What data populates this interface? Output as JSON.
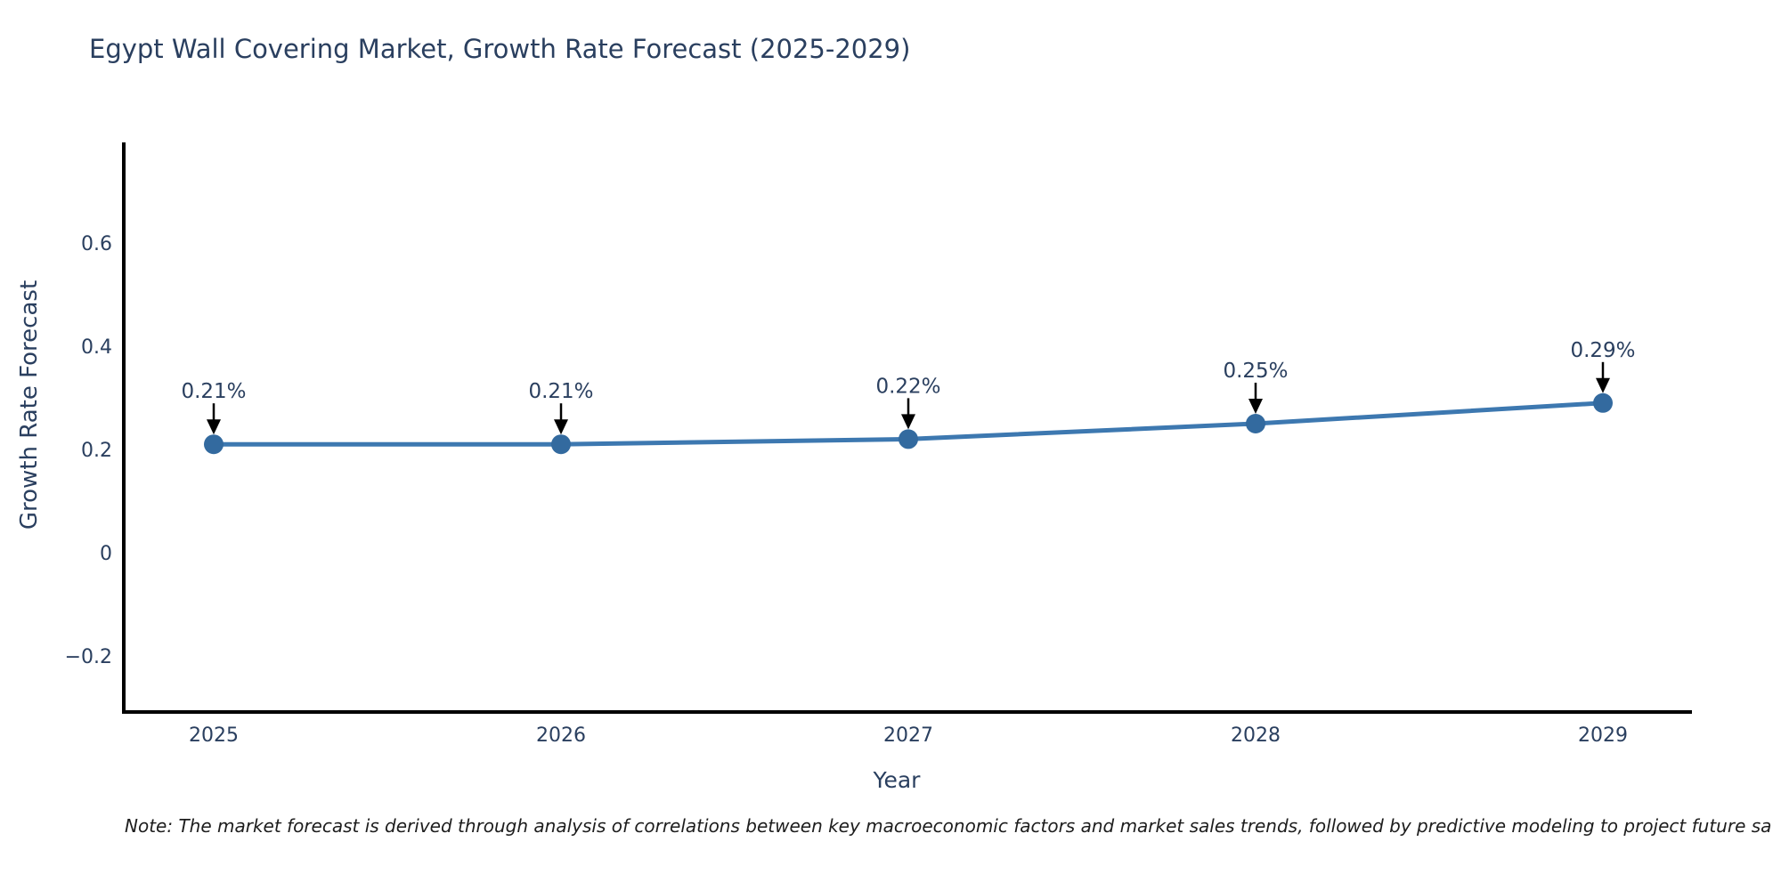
{
  "header": {
    "title": "Egypt Wall Covering Market, Growth Rate Forecast (2025-2029)"
  },
  "footer": {
    "note": "Note: The market forecast is derived through analysis of correlations between key macroeconomic factors and market sales trends, followed by predictive modeling to project future sa"
  },
  "chart_data": {
    "type": "line",
    "title": "Egypt Wall Covering Market, Growth Rate Forecast (2025-2029)",
    "xlabel": "Year",
    "ylabel": "Growth Rate Forecast",
    "categories": [
      "2025",
      "2026",
      "2027",
      "2028",
      "2029"
    ],
    "series": [
      {
        "name": "Growth Rate Forecast",
        "values": [
          0.21,
          0.21,
          0.22,
          0.25,
          0.29
        ],
        "point_labels": [
          "0.21%",
          "0.21%",
          "0.22%",
          "0.25%",
          "0.29%"
        ]
      }
    ],
    "yticks": [
      -0.2,
      0,
      0.2,
      0.4,
      0.6
    ],
    "ytick_labels": [
      "−0.2",
      "0",
      "0.2",
      "0.4",
      "0.6"
    ],
    "ylim": [
      -0.31,
      0.8
    ],
    "grid": false,
    "legend_position": "none",
    "colors": {
      "line": "#3d78b0",
      "marker": "#336a9f",
      "axis": "#000000",
      "text": "#2a3f5f",
      "annotation_arrow": "#000000"
    }
  }
}
